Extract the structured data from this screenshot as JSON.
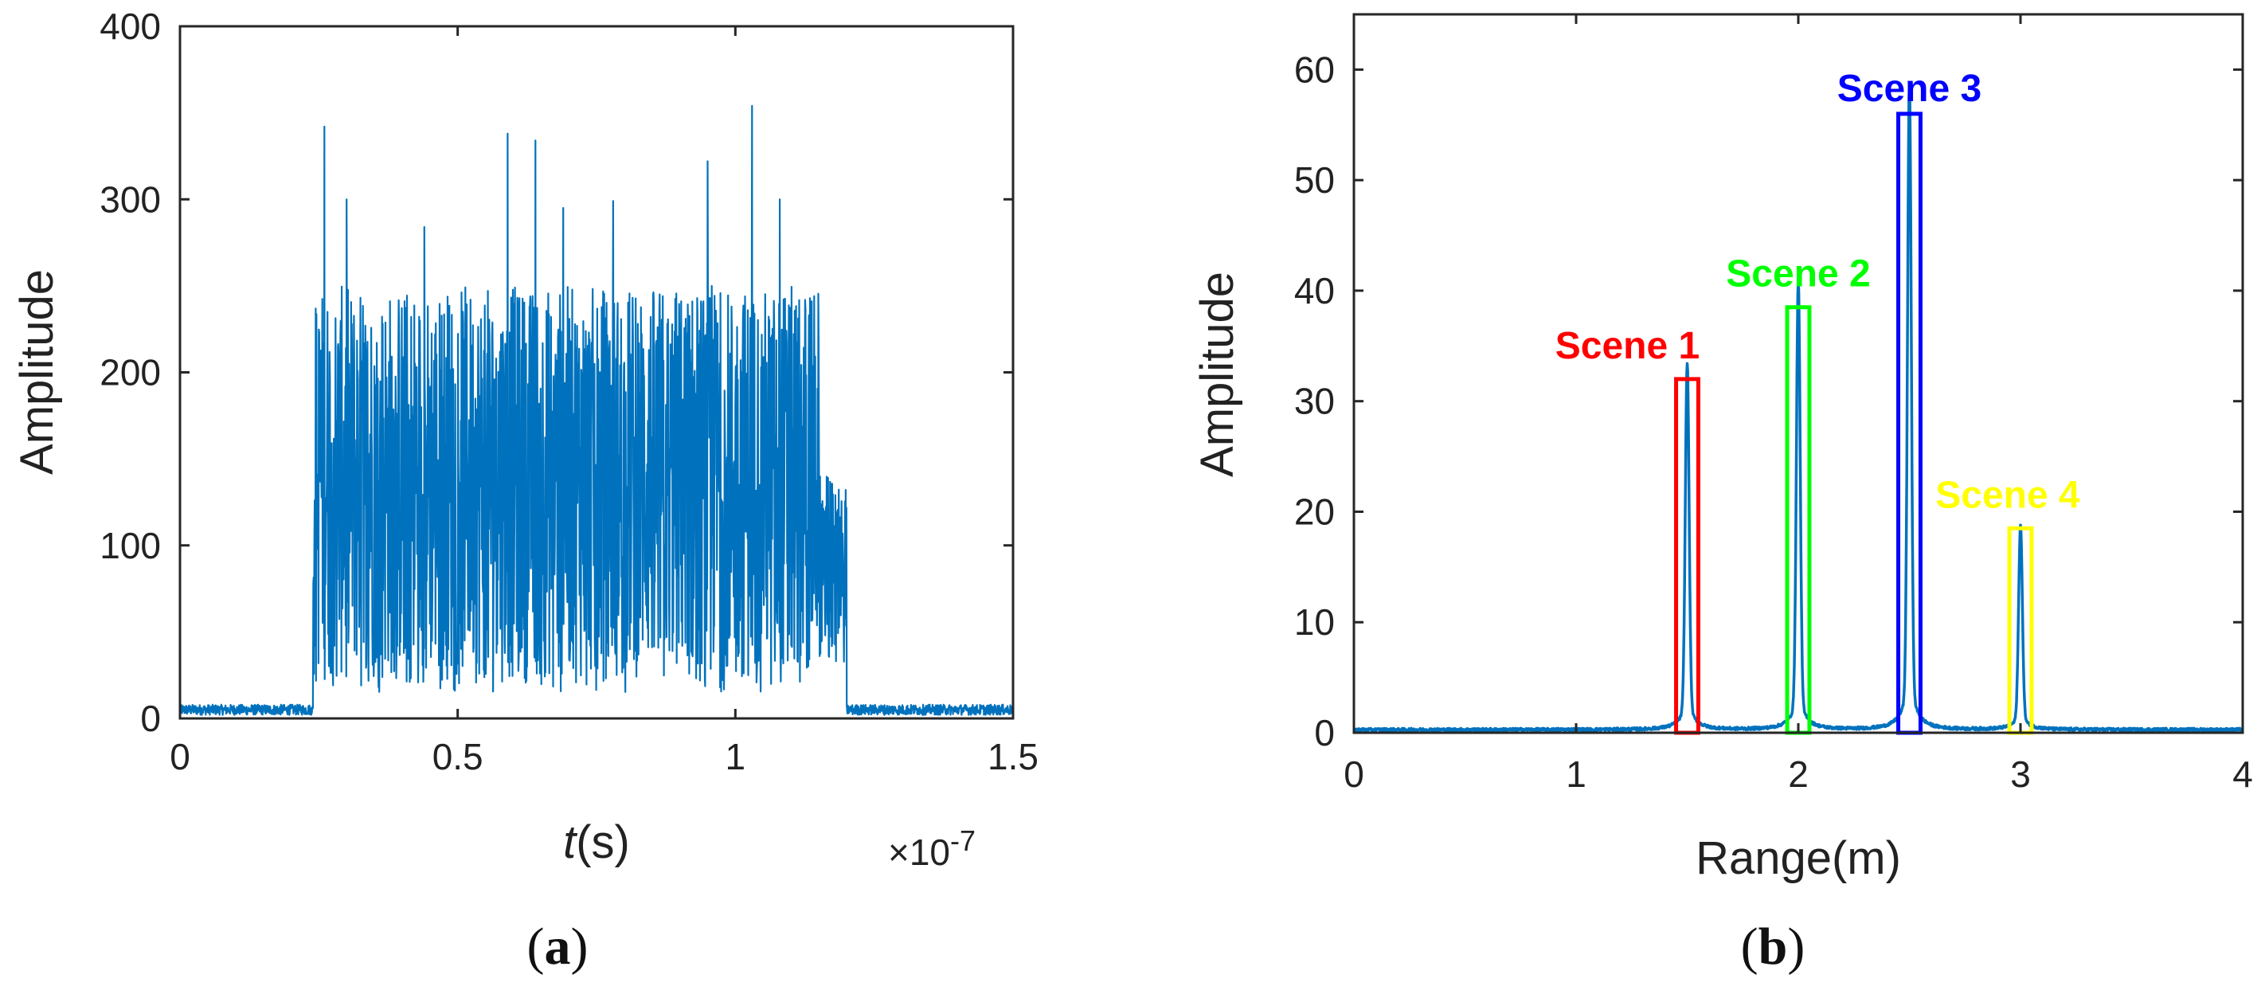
{
  "chart_data": [
    {
      "type": "line",
      "panel_label": {
        "open": "(",
        "letter": "a",
        "close": ")"
      },
      "xlabel": {
        "italic": "t",
        "rest": "(s)"
      },
      "x_exponent": {
        "times": "×",
        "base": "10",
        "power": "-7"
      },
      "ylabel": "Amplitude",
      "xlim": [
        0,
        1.5
      ],
      "ylim": [
        0,
        400
      ],
      "xticks": [
        "0",
        "0.5",
        "1",
        "1.5"
      ],
      "yticks": [
        "0",
        "100",
        "200",
        "300",
        "400"
      ],
      "color": "#0072BD",
      "series": [
        {
          "x": [
            0,
            0.05,
            0.1,
            0.15,
            0.2,
            0.24,
            0.245,
            0.25,
            0.26,
            0.3,
            0.35,
            0.4,
            0.45,
            0.5,
            0.55,
            0.6,
            0.65,
            0.7,
            0.75,
            0.8,
            0.85,
            0.9,
            0.95,
            1.0,
            1.03,
            1.05,
            1.1,
            1.15,
            1.2,
            1.205,
            1.21,
            1.3,
            1.4,
            1.5
          ],
          "y_noise_floor": [
            2,
            8
          ],
          "y_band_low": [
            25,
            55
          ],
          "y_band_high": [
            230,
            260
          ],
          "y_peaks": [
            {
              "x": 0.26,
              "y": 342
            },
            {
              "x": 0.3,
              "y": 300
            },
            {
              "x": 0.44,
              "y": 284
            },
            {
              "x": 0.59,
              "y": 338
            },
            {
              "x": 0.64,
              "y": 334
            },
            {
              "x": 0.69,
              "y": 295
            },
            {
              "x": 0.78,
              "y": 299
            },
            {
              "x": 0.95,
              "y": 322
            },
            {
              "x": 1.03,
              "y": 354
            },
            {
              "x": 1.08,
              "y": 300
            },
            {
              "x": 1.15,
              "y": 216
            }
          ],
          "burst_start": 0.24,
          "burst_end": 1.2
        }
      ]
    },
    {
      "type": "line",
      "panel_label": {
        "open": "(",
        "letter": "b",
        "close": ")"
      },
      "xlabel": "Range(m)",
      "ylabel": "Amplitude",
      "xlim": [
        0,
        4
      ],
      "ylim": [
        0,
        65
      ],
      "xticks": [
        "0",
        "1",
        "2",
        "3",
        "4"
      ],
      "yticks": [
        "0",
        "10",
        "20",
        "30",
        "40",
        "50",
        "60"
      ],
      "color": "#0072BD",
      "peaks": [
        {
          "x": 1.5,
          "y": 31.5
        },
        {
          "x": 2.0,
          "y": 38.5
        },
        {
          "x": 2.5,
          "y": 55.5
        },
        {
          "x": 3.0,
          "y": 17.5
        }
      ],
      "annotations": [
        {
          "label": "Scene 1",
          "color": "#FF0000",
          "box_x": [
            1.45,
            1.55
          ],
          "box_y": [
            0,
            32
          ]
        },
        {
          "label": "Scene 2",
          "color": "#00FF00",
          "box_x": [
            1.95,
            2.05
          ],
          "box_y": [
            0,
            38.5
          ]
        },
        {
          "label": "Scene 3",
          "color": "#0000FF",
          "box_x": [
            2.45,
            2.55
          ],
          "box_y": [
            0,
            56
          ]
        },
        {
          "label": "Scene 4",
          "color": "#FFFF00",
          "box_x": [
            2.95,
            3.05
          ],
          "box_y": [
            0,
            18.5
          ]
        }
      ]
    }
  ]
}
